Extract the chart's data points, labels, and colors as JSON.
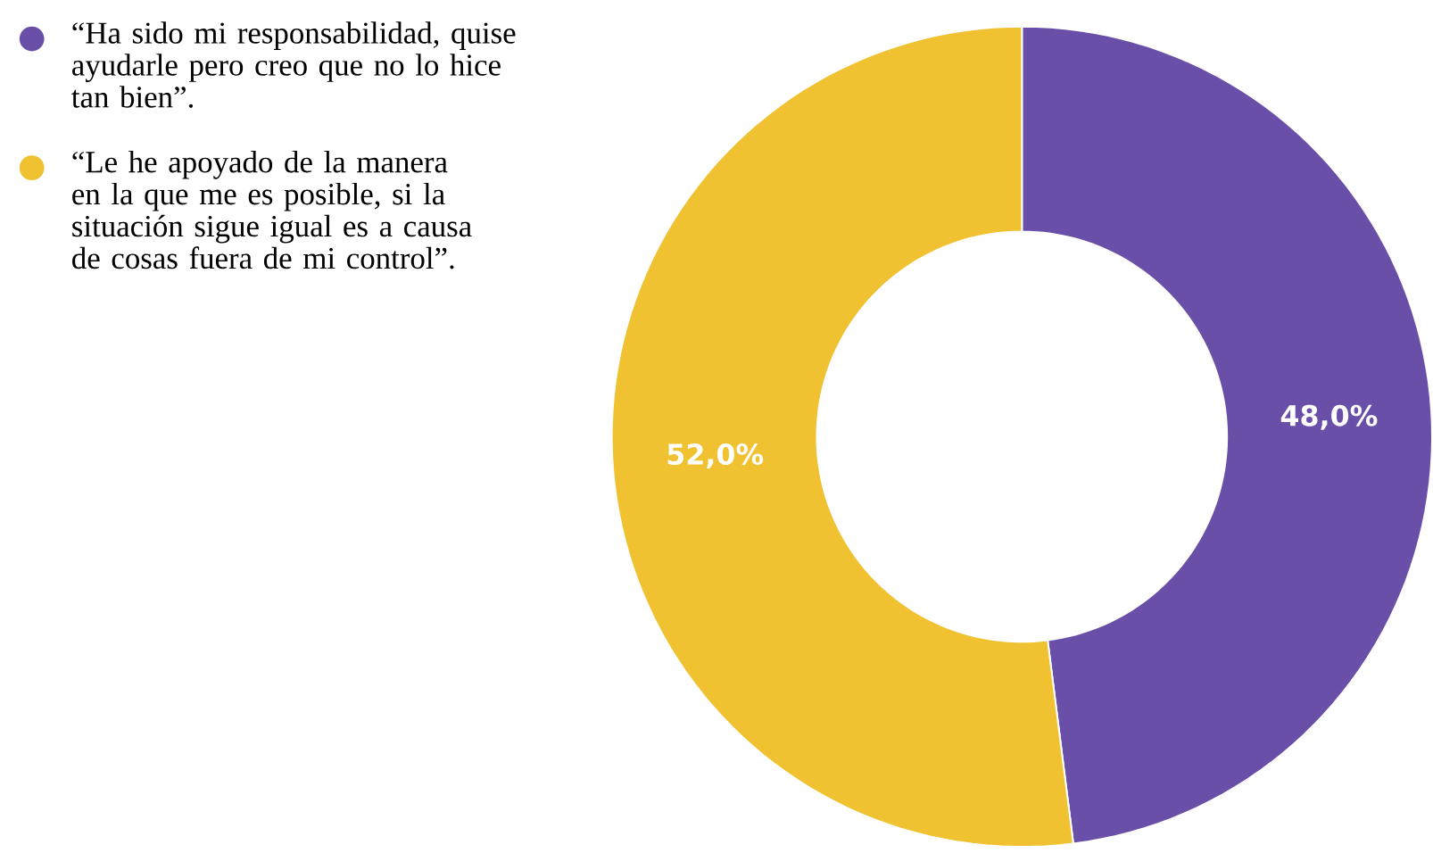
{
  "chart_data": {
    "type": "donut",
    "categories": [
      "“Ha sido mi responsabilidad, quise ayudarle pero creo que no lo hice tan bien”.",
      "“Le he apoyado de la manera en la que me es posible, si la situación sigue igual es a causa de cosas fuera de mi control”."
    ],
    "values": [
      48,
      52
    ],
    "value_labels": [
      "48,0%",
      "52,0%"
    ],
    "colors": [
      "#6a4fa8",
      "#f0c232"
    ],
    "legend": "top left"
  }
}
